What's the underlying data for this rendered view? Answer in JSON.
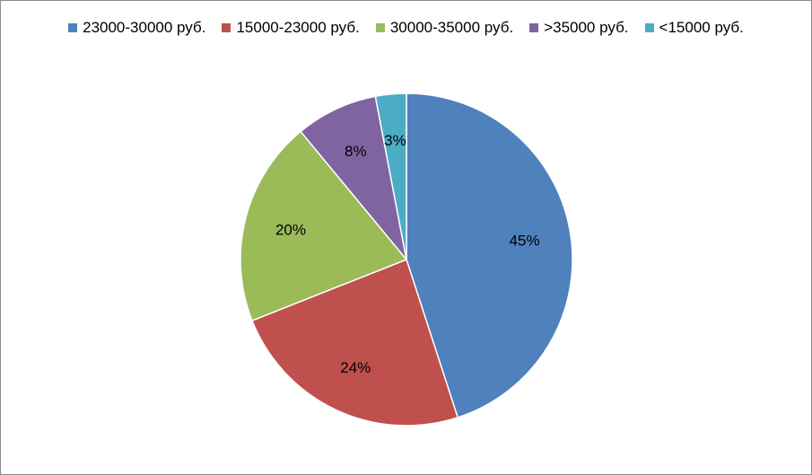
{
  "chart_data": {
    "type": "pie",
    "title": "",
    "legend_position": "top",
    "slices": [
      {
        "name": "23000-30000 руб.",
        "value": 45,
        "label": "45%",
        "color": "#4f81bd"
      },
      {
        "name": "15000-23000 руб.",
        "value": 24,
        "label": "24%",
        "color": "#c0504d"
      },
      {
        "name": "30000-35000 руб.",
        "value": 20,
        "label": "20%",
        "color": "#9bbb59"
      },
      {
        "name": ">35000 руб.",
        "value": 8,
        "label": "8%",
        "color": "#8064a2"
      },
      {
        "name": "<15000 руб.",
        "value": 3,
        "label": "3%",
        "color": "#4bacc6"
      }
    ]
  }
}
